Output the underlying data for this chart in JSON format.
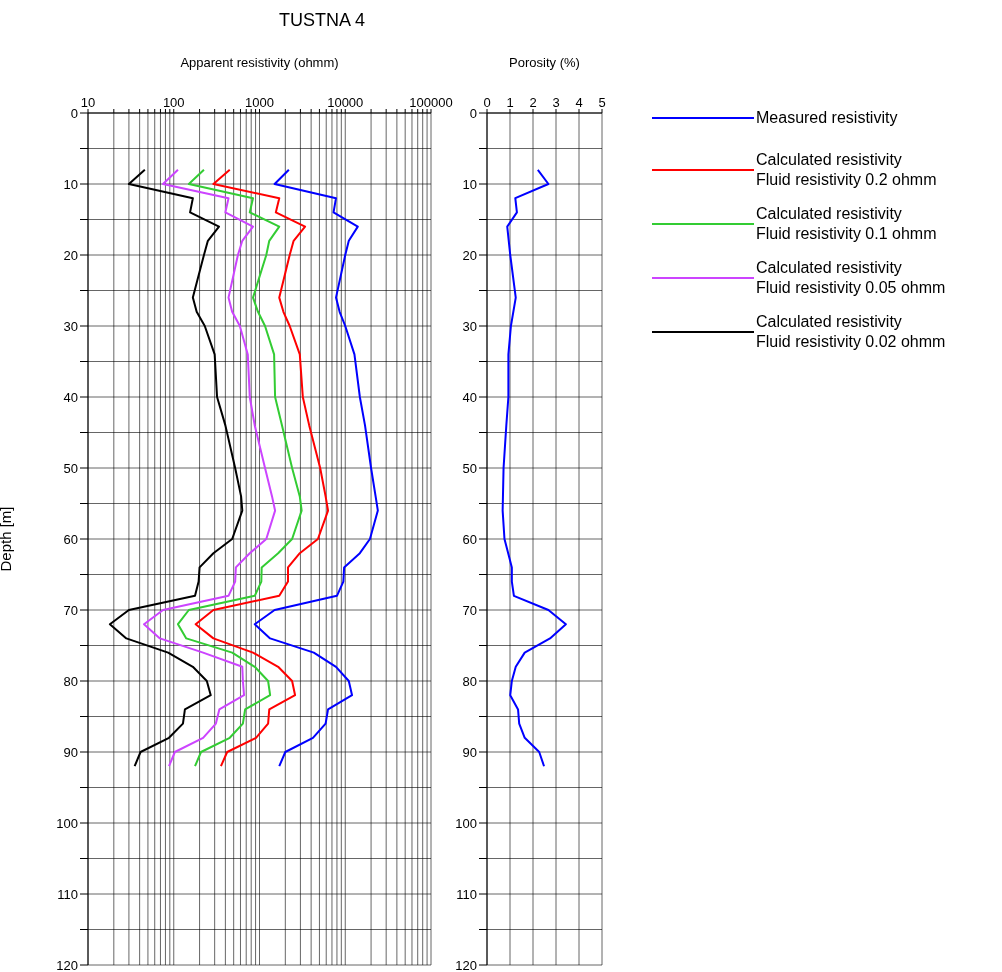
{
  "chart_data": [
    {
      "type": "line",
      "title": "TUSTNA 4",
      "xlabel": "Apparent resistivity (ohmm)",
      "ylabel": "Depth [m]",
      "orientation": "horizontal",
      "log": "x",
      "grid": true,
      "legend": "right",
      "marker": "none",
      "line_style": "solid",
      "x": [
        8,
        10,
        12,
        14,
        16,
        18,
        20,
        26,
        28,
        30,
        34,
        40,
        44,
        50,
        54,
        56,
        60,
        62,
        64,
        66,
        68,
        70,
        72,
        74,
        76,
        78,
        80,
        82,
        84,
        86,
        88,
        90,
        92
      ],
      "xlim": [
        10,
        100000
      ],
      "xticks": [
        10,
        {
          "value": 20,
          "label": null
        },
        {
          "value": 30,
          "label": null
        },
        {
          "value": 40,
          "label": null
        },
        {
          "value": 50,
          "label": null
        },
        {
          "value": 60,
          "label": null
        },
        {
          "value": 70,
          "label": null
        },
        {
          "value": 80,
          "label": null
        },
        {
          "value": 90,
          "label": null
        },
        100,
        {
          "value": 200,
          "label": null
        },
        {
          "value": 300,
          "label": null
        },
        {
          "value": 400,
          "label": null
        },
        {
          "value": 500,
          "label": null
        },
        {
          "value": 600,
          "label": null
        },
        {
          "value": 700,
          "label": null
        },
        {
          "value": 800,
          "label": null
        },
        {
          "value": 900,
          "label": null
        },
        1000,
        {
          "value": 2000,
          "label": null
        },
        {
          "value": 3000,
          "label": null
        },
        {
          "value": 4000,
          "label": null
        },
        {
          "value": 5000,
          "label": null
        },
        {
          "value": 6000,
          "label": null
        },
        {
          "value": 7000,
          "label": null
        },
        {
          "value": 8000,
          "label": null
        },
        {
          "value": 9000,
          "label": null
        },
        10000,
        {
          "value": 20000,
          "label": null
        },
        {
          "value": 30000,
          "label": null
        },
        {
          "value": 40000,
          "label": null
        },
        {
          "value": 50000,
          "label": null
        },
        {
          "value": 60000,
          "label": null
        },
        {
          "value": 70000,
          "label": null
        },
        {
          "value": 80000,
          "label": null
        },
        {
          "value": 90000,
          "label": null
        },
        100000
      ],
      "ylim": [
        120,
        0
      ],
      "yticks": [
        0,
        {
          "value": 5,
          "label": null
        },
        10,
        {
          "value": 15,
          "label": null
        },
        20,
        {
          "value": 25,
          "label": null
        },
        30,
        {
          "value": 35,
          "label": null
        },
        40,
        {
          "value": 45,
          "label": null
        },
        50,
        {
          "value": 55,
          "label": null
        },
        60,
        {
          "value": 65,
          "label": null
        },
        70,
        {
          "value": 75,
          "label": null
        },
        80,
        {
          "value": 85,
          "label": null
        },
        90,
        {
          "value": 95,
          "label": null
        },
        100,
        {
          "value": 105,
          "label": null
        },
        110,
        {
          "value": 115,
          "label": null
        },
        120
      ],
      "series": [
        {
          "name": "Measured resistivity",
          "color": "#0000ff",
          "values": [
            2200,
            1500,
            7800,
            7300,
            14000,
            11000,
            10000,
            7800,
            8600,
            10000,
            12800,
            14800,
            17000,
            20000,
            22600,
            24000,
            19400,
            14800,
            9700,
            9500,
            8000,
            1500,
            880,
            1330,
            4300,
            7800,
            11000,
            12000,
            6300,
            5900,
            4200,
            2000,
            1700
          ]
        },
        {
          "name": "Calculated resistivity\nFluid resistivity 0.2 ohmm",
          "color": "#ff0000",
          "values": [
            450,
            290,
            1700,
            1550,
            3400,
            2500,
            2250,
            1700,
            1900,
            2250,
            2950,
            3200,
            3800,
            5100,
            5900,
            6300,
            4800,
            2950,
            2150,
            2150,
            1700,
            290,
            180,
            290,
            840,
            1650,
            2400,
            2600,
            1300,
            1260,
            910,
            420,
            355
          ]
        },
        {
          "name": "Calculated resistivity\nFluid resistivity 0.1 ohmm",
          "color": "#33cc33",
          "values": [
            225,
            150,
            840,
            770,
            1700,
            1300,
            1200,
            840,
            960,
            1160,
            1480,
            1520,
            1830,
            2400,
            2950,
            3100,
            2400,
            1650,
            1060,
            1050,
            880,
            150,
            112,
            140,
            480,
            880,
            1260,
            1330,
            680,
            640,
            450,
            208,
            177
          ]
        },
        {
          "name": "Calculated resistivity\nFluid resistivity 0.05 ohmm",
          "color": "#cc44ff",
          "values": [
            112,
            75,
            435,
            400,
            840,
            630,
            560,
            435,
            480,
            590,
            730,
            770,
            880,
            1160,
            1400,
            1520,
            1200,
            770,
            530,
            520,
            435,
            75,
            45,
            69,
            220,
            630,
            640,
            660,
            340,
            310,
            220,
            103,
            88
          ]
        },
        {
          "name": "Calculated resistivity\nFluid resistivity 0.02 ohmm",
          "color": "#000000",
          "values": [
            46,
            30,
            167,
            155,
            337,
            250,
            225,
            167,
            185,
            230,
            300,
            320,
            400,
            520,
            610,
            630,
            480,
            290,
            200,
            195,
            177,
            30,
            18,
            28,
            86,
            167,
            243,
            270,
            135,
            128,
            88,
            41,
            35
          ]
        }
      ]
    },
    {
      "type": "line",
      "xlabel": "Porosity (%)",
      "orientation": "horizontal",
      "grid": true,
      "marker": "none",
      "line_style": "solid",
      "x": [
        8,
        10,
        12,
        14,
        16,
        20,
        26,
        30,
        34,
        40,
        44,
        50,
        56,
        60,
        64,
        66,
        68,
        70,
        72,
        74,
        76,
        78,
        80,
        82,
        84,
        86,
        88,
        90,
        92
      ],
      "xlim": [
        0,
        5
      ],
      "xticks": [
        0,
        1,
        2,
        3,
        4,
        5
      ],
      "ylim": [
        120,
        0
      ],
      "yticks": [
        0,
        {
          "value": 5,
          "label": null
        },
        10,
        {
          "value": 15,
          "label": null
        },
        20,
        {
          "value": 25,
          "label": null
        },
        30,
        {
          "value": 35,
          "label": null
        },
        40,
        {
          "value": 45,
          "label": null
        },
        50,
        {
          "value": 55,
          "label": null
        },
        60,
        {
          "value": 65,
          "label": null
        },
        70,
        {
          "value": 75,
          "label": null
        },
        80,
        {
          "value": 85,
          "label": null
        },
        90,
        {
          "value": 95,
          "label": null
        },
        100,
        {
          "value": 105,
          "label": null
        },
        110,
        {
          "value": 115,
          "label": null
        },
        120
      ],
      "series": [
        {
          "color": "#0000ff",
          "values": [
            2.21,
            2.67,
            1.23,
            1.3,
            0.88,
            1.01,
            1.25,
            1.04,
            0.93,
            0.93,
            0.84,
            0.72,
            0.68,
            0.76,
            1.08,
            1.08,
            1.17,
            2.67,
            3.43,
            2.74,
            1.64,
            1.25,
            1.08,
            1.01,
            1.35,
            1.4,
            1.64,
            2.27,
            2.48
          ]
        }
      ]
    }
  ]
}
